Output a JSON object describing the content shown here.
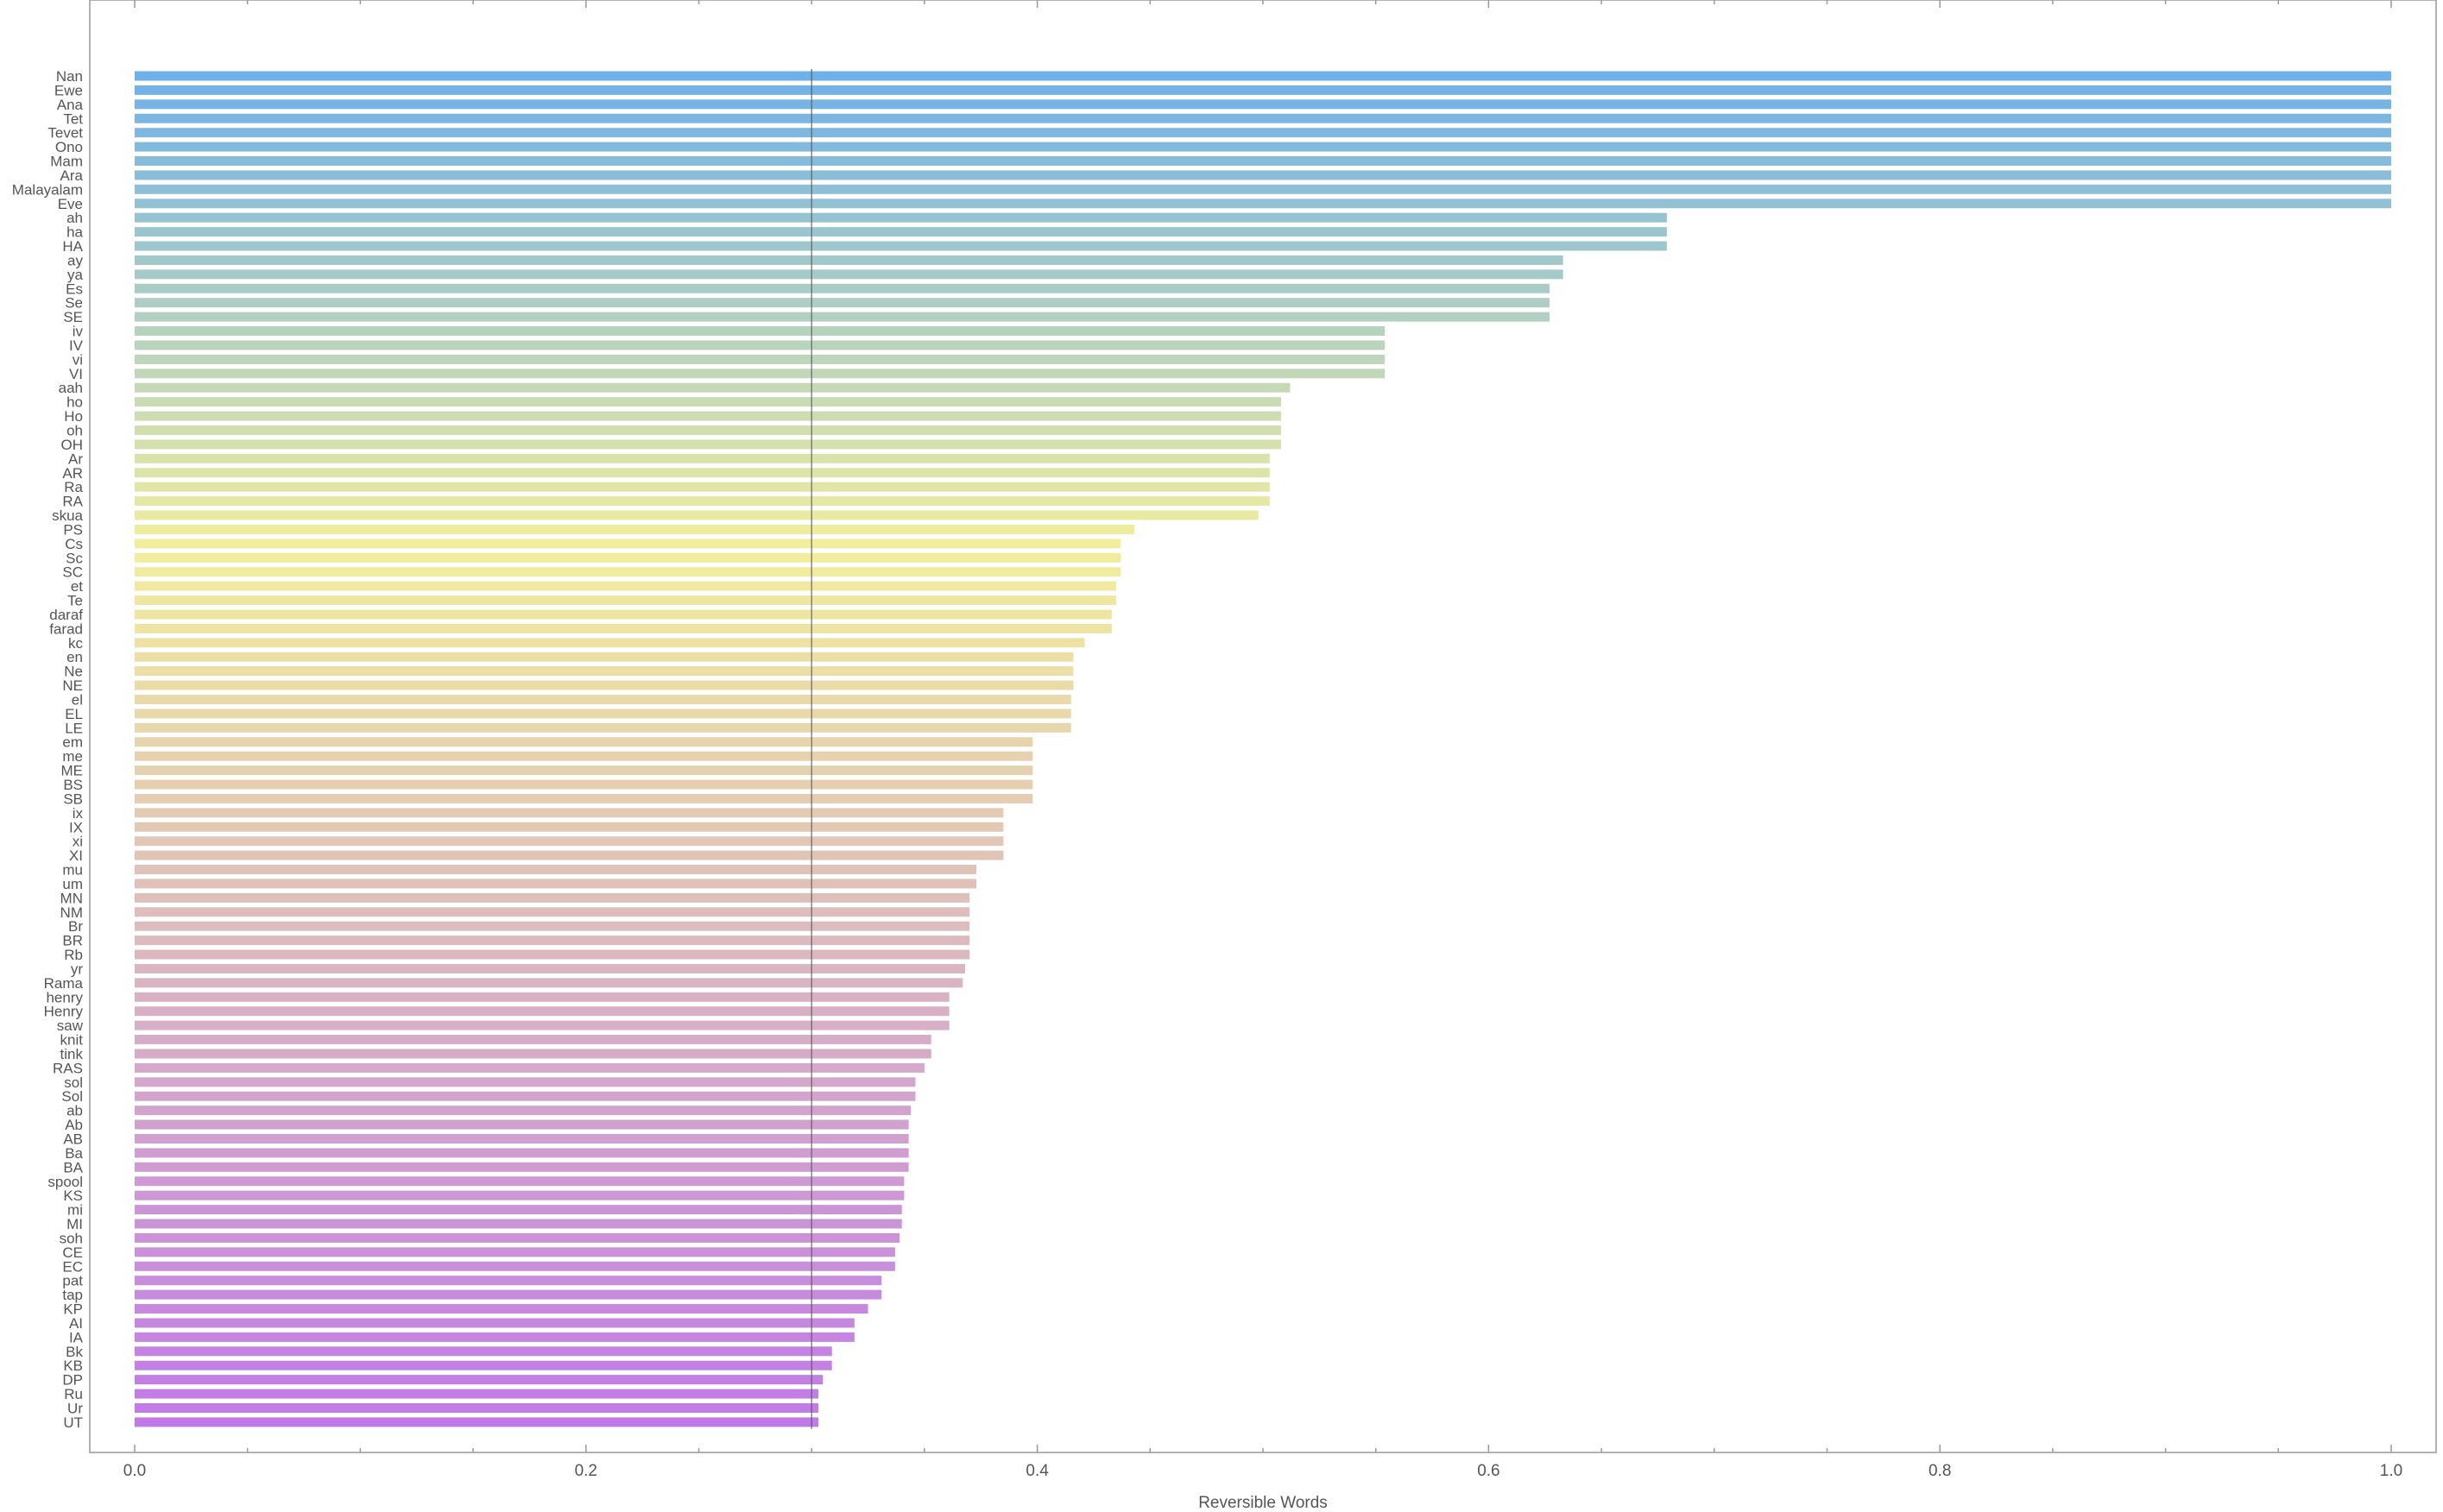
{
  "chart_data": {
    "type": "bar",
    "orientation": "horizontal",
    "xlabel": "Reversible Words",
    "xlim": [
      -0.02,
      1.02
    ],
    "xticks": [
      0.0,
      0.2,
      0.4,
      0.6,
      0.8,
      1.0
    ],
    "xtick_labels": [
      "0.0",
      "0.2",
      "0.4",
      "0.6",
      "0.8",
      "1.0"
    ],
    "reference_line": 0.3,
    "color_start": "#6eb0e8",
    "color_middle": "#f2ee9c",
    "color_end": "#c07ae8",
    "categories": [
      "Nan",
      "Ewe",
      "Ana",
      "Tet",
      "Tevet",
      "Ono",
      "Mam",
      "Ara",
      "Malayalam",
      "Eve",
      "ah",
      "ha",
      "HA",
      "ay",
      "ya",
      "Es",
      "Se",
      "SE",
      "iv",
      "IV",
      "vi",
      "VI",
      "aah",
      "ho",
      "Ho",
      "oh",
      "OH",
      "Ar",
      "AR",
      "Ra",
      "RA",
      "skua",
      "PS",
      "Cs",
      "Sc",
      "SC",
      "et",
      "Te",
      "daraf",
      "farad",
      "kc",
      "en",
      "Ne",
      "NE",
      "el",
      "EL",
      "LE",
      "em",
      "me",
      "ME",
      "BS",
      "SB",
      "ix",
      "IX",
      "xi",
      "XI",
      "mu",
      "um",
      "MN",
      "NM",
      "Br",
      "BR",
      "Rb",
      "yr",
      "Rama",
      "henry",
      "Henry",
      "saw",
      "knit",
      "tink",
      "RAS",
      "sol",
      "Sol",
      "ab",
      "Ab",
      "AB",
      "Ba",
      "BA",
      "spool",
      "KS",
      "mi",
      "MI",
      "soh",
      "CE",
      "EC",
      "pat",
      "tap",
      "KP",
      "AI",
      "IA",
      "Bk",
      "KB",
      "DP",
      "Ru",
      "Ur",
      "UT"
    ],
    "values": [
      1.0,
      1.0,
      1.0,
      1.0,
      1.0,
      1.0,
      1.0,
      1.0,
      1.0,
      1.0,
      0.679,
      0.679,
      0.679,
      0.633,
      0.633,
      0.627,
      0.627,
      0.627,
      0.554,
      0.554,
      0.554,
      0.554,
      0.512,
      0.508,
      0.508,
      0.508,
      0.508,
      0.503,
      0.503,
      0.503,
      0.503,
      0.498,
      0.443,
      0.437,
      0.437,
      0.437,
      0.435,
      0.435,
      0.433,
      0.433,
      0.421,
      0.416,
      0.416,
      0.416,
      0.415,
      0.415,
      0.415,
      0.398,
      0.398,
      0.398,
      0.398,
      0.398,
      0.385,
      0.385,
      0.385,
      0.385,
      0.373,
      0.373,
      0.37,
      0.37,
      0.37,
      0.37,
      0.37,
      0.368,
      0.367,
      0.361,
      0.361,
      0.361,
      0.353,
      0.353,
      0.35,
      0.346,
      0.346,
      0.344,
      0.343,
      0.343,
      0.343,
      0.343,
      0.341,
      0.341,
      0.34,
      0.34,
      0.339,
      0.337,
      0.337,
      0.331,
      0.331,
      0.325,
      0.319,
      0.319,
      0.309,
      0.309,
      0.305,
      0.303,
      0.303,
      0.303
    ]
  }
}
